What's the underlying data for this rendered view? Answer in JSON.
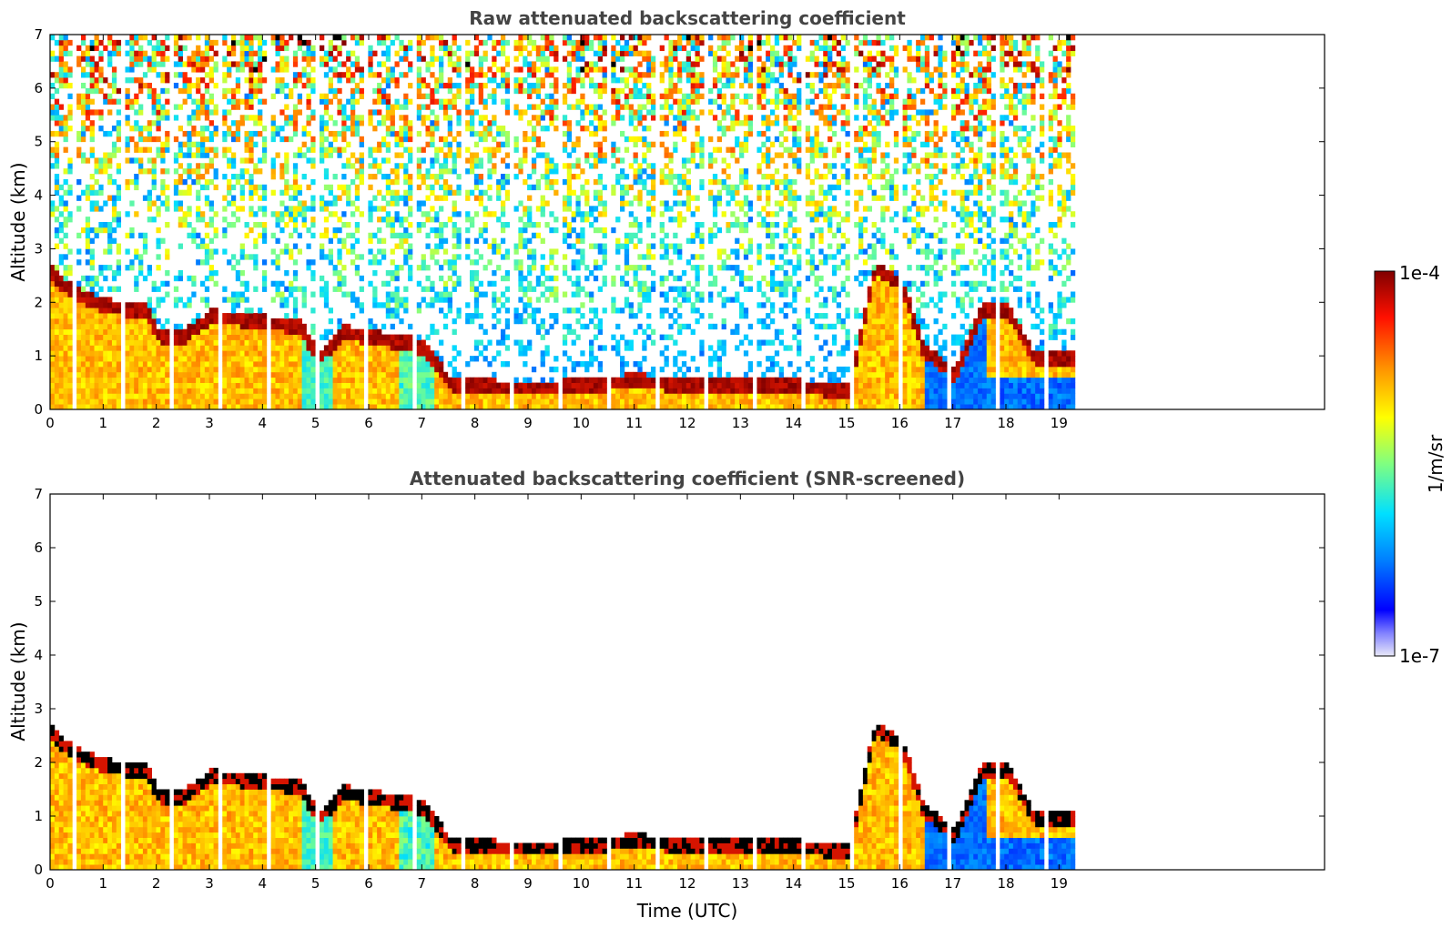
{
  "chart_data": [
    {
      "type": "heatmap",
      "title": "Raw attenuated backscattering coefficient",
      "xlabel": "",
      "ylabel": "Altitude (km)",
      "xlim": [
        0,
        24
      ],
      "ylim": [
        0,
        7
      ],
      "xticks": [
        "0",
        "1",
        "2",
        "3",
        "4",
        "5",
        "6",
        "7",
        "8",
        "9",
        "10",
        "11",
        "12",
        "13",
        "14",
        "15",
        "16",
        "17",
        "18",
        "19"
      ],
      "yticks": [
        "0",
        "1",
        "2",
        "3",
        "4",
        "5",
        "6",
        "7"
      ],
      "data_end_time": 19.3,
      "boundary_layer_top_km": [
        [
          0,
          2.5
        ],
        [
          0.3,
          2.2
        ],
        [
          1,
          1.9
        ],
        [
          1.8,
          1.8
        ],
        [
          2,
          1.35
        ],
        [
          2.5,
          1.35
        ],
        [
          3,
          1.7
        ],
        [
          4,
          1.6
        ],
        [
          4.7,
          1.5
        ],
        [
          5,
          0.9
        ],
        [
          5.5,
          1.4
        ],
        [
          6,
          1.3
        ],
        [
          6.8,
          1.2
        ],
        [
          7,
          1.1
        ],
        [
          7.5,
          0.45
        ],
        [
          8,
          0.4
        ],
        [
          9,
          0.35
        ],
        [
          10,
          0.4
        ],
        [
          11,
          0.5
        ],
        [
          12,
          0.4
        ],
        [
          13,
          0.45
        ],
        [
          14,
          0.4
        ],
        [
          15,
          0.3
        ],
        [
          15.2,
          1.2
        ],
        [
          15.5,
          2.6
        ],
        [
          16,
          2.3
        ],
        [
          16.4,
          1.1
        ],
        [
          17,
          0.6
        ],
        [
          17.5,
          1.8
        ],
        [
          18,
          1.8
        ],
        [
          18.5,
          0.9
        ],
        [
          19.3,
          0.9
        ]
      ],
      "colorbar": {
        "label": "1/m/sr",
        "min_label": "1e-7",
        "max_label": "1e-4",
        "scale": "log"
      }
    },
    {
      "type": "heatmap",
      "title": "Attenuated backscattering coefficient (SNR-screened)",
      "xlabel": "Time (UTC)",
      "ylabel": "Altitude (km)",
      "xlim": [
        0,
        24
      ],
      "ylim": [
        0,
        7
      ],
      "xticks": [
        "0",
        "1",
        "2",
        "3",
        "4",
        "5",
        "6",
        "7",
        "8",
        "9",
        "10",
        "11",
        "12",
        "13",
        "14",
        "15",
        "16",
        "17",
        "18",
        "19"
      ],
      "yticks": [
        "0",
        "1",
        "2",
        "3",
        "4",
        "5",
        "6",
        "7"
      ],
      "data_end_time": 19.3,
      "colorbar": {
        "label": "1/m/sr",
        "min_label": "1e-7",
        "max_label": "1e-4",
        "scale": "log"
      }
    }
  ],
  "colors": {
    "title": "#444444",
    "axis": "#000000",
    "colormap": [
      "#e8e8f8",
      "#0000ff",
      "#00a0ff",
      "#00ffff",
      "#80ff80",
      "#ffff00",
      "#ff8000",
      "#ff0000",
      "#800000"
    ]
  }
}
